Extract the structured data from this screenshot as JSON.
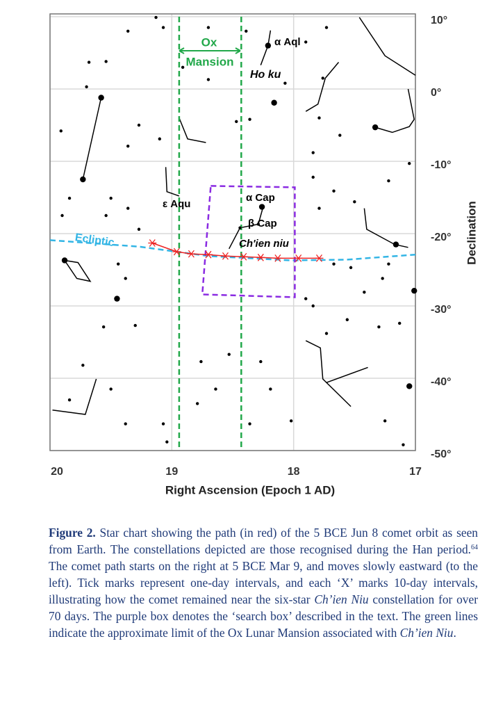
{
  "chart_data": {
    "type": "scatter",
    "x_label": "Right Ascension (Epoch 1 AD)",
    "y_label": "Declination",
    "xlim": [
      20,
      17
    ],
    "ylim": [
      -50,
      10
    ],
    "xticks": [
      20,
      19,
      18,
      17
    ],
    "yticks": [
      {
        "value": 10,
        "label": "10°"
      },
      {
        "value": 0,
        "label": "0°"
      },
      {
        "value": -10,
        "label": "-10°"
      },
      {
        "value": -20,
        "label": "-20°"
      },
      {
        "value": -30,
        "label": "-30°"
      },
      {
        "value": -40,
        "label": "-40°"
      },
      {
        "value": -50,
        "label": "-50°"
      }
    ],
    "grid": true,
    "series": [
      {
        "color": "#000000",
        "size": 2.2,
        "x": [
          19.13,
          19.07,
          19.36,
          19.54,
          19.68,
          19.7,
          19.91,
          19.27,
          19.36,
          19.1,
          19.5,
          19.36,
          19.84,
          19.9,
          19.54,
          19.27,
          19.44,
          19.38,
          19.56,
          19.3,
          19.73,
          19.84,
          19.5,
          19.38,
          19.07,
          19.04,
          18.79,
          18.76,
          18.64,
          18.53,
          18.27,
          18.19,
          18.36,
          18.02,
          17.9,
          17.84,
          17.73,
          17.56,
          17.3,
          17.13,
          17.25,
          17.1,
          17.27,
          17.22,
          17.67,
          17.53,
          17.42,
          17.79,
          17.67,
          17.5,
          17.84,
          17.22,
          17.05,
          17.84,
          17.62,
          17.79,
          18.07,
          18.7,
          18.47,
          18.36,
          18.91,
          17.76,
          17.73,
          17.9,
          18.39,
          18.7,
          18.44,
          18.29
        ],
        "y": [
          9.9,
          8.5,
          8.0,
          3.8,
          3.7,
          0.3,
          -5.8,
          -5.0,
          -7.9,
          -6.9,
          -15.1,
          -16.5,
          -15.1,
          -17.5,
          -17.5,
          -19.4,
          -24.2,
          -26.2,
          -32.9,
          -32.7,
          -38.2,
          -43.0,
          -41.5,
          -46.3,
          -46.3,
          -48.8,
          -43.5,
          -37.7,
          -41.5,
          -36.7,
          -37.7,
          -41.5,
          -46.3,
          -45.9,
          -29.0,
          -30.0,
          -33.8,
          -31.9,
          -32.9,
          -32.4,
          -45.9,
          -49.2,
          -26.2,
          -24.2,
          -24.2,
          -24.7,
          -28.1,
          -16.5,
          -14.1,
          -15.6,
          -12.2,
          -12.7,
          -10.3,
          -8.8,
          -6.4,
          -4.0,
          0.8,
          1.3,
          -4.5,
          -4.2,
          3.0,
          1.5,
          8.5,
          6.5,
          8.0,
          8.5,
          -19.2,
          -18.7
        ]
      },
      {
        "color": "#000000",
        "size": 4.2,
        "x": [
          19.58,
          19.73,
          19.45,
          17.05,
          17.01,
          18.16,
          18.21,
          18.26,
          19.88,
          17.16,
          17.33
        ],
        "y": [
          -1.2,
          -12.5,
          -29.0,
          -41.1,
          -27.9,
          -1.9,
          6.0,
          -16.3,
          -23.7,
          -21.5,
          -5.3
        ]
      }
    ],
    "lines": [
      {
        "color": "#000000",
        "dash": false,
        "x": [
          18.19,
          18.21,
          18.27,
          null,
          19.58,
          19.73,
          null,
          17.46,
          17.25,
          17.0,
          null,
          17.63,
          17.74,
          17.8,
          17.9,
          null,
          17.33,
          17.19,
          17.05,
          17.01,
          17.06,
          null,
          18.25,
          18.29,
          18.44,
          18.53,
          null,
          19.05,
          19.04,
          18.94,
          null,
          18.94,
          18.87,
          18.72,
          null,
          17.42,
          17.4,
          17.17,
          17.06,
          null,
          19.88,
          19.78,
          19.67,
          19.77,
          19.88,
          null,
          17.9,
          17.78,
          17.76,
          17.53,
          null,
          17.73,
          17.39,
          null,
          19.98,
          19.71,
          19.62
        ],
        "y": [
          8.1,
          6.0,
          3.3,
          null,
          -1.2,
          -12.5,
          null,
          9.9,
          4.6,
          1.9,
          null,
          3.7,
          1.5,
          -2.1,
          -3.1,
          null,
          -5.3,
          -6.0,
          -5.2,
          -4.2,
          0.0,
          null,
          -16.3,
          -18.7,
          -19.2,
          -22.1,
          null,
          -10.8,
          -14.2,
          -14.8,
          null,
          -4.0,
          -6.9,
          -7.4,
          null,
          -16.5,
          -19.4,
          -21.5,
          -21.9,
          null,
          -23.7,
          -26.2,
          -26.6,
          -24.0,
          -23.7,
          null,
          -34.8,
          -35.8,
          -40.1,
          -43.9,
          null,
          -40.6,
          -38.5,
          null,
          -44.4,
          -45.0,
          -40.1
        ]
      },
      {
        "color": "#33b5e5",
        "dash": true,
        "x": [
          20,
          19.27,
          18.7,
          18.02,
          17.56,
          17.0
        ],
        "y": [
          -20.9,
          -21.8,
          -23.1,
          -23.7,
          -23.6,
          -22.9
        ]
      },
      {
        "color": "#22a84a",
        "dash": true,
        "x": [
          18.94,
          18.94
        ],
        "y": [
          10,
          -50
        ]
      },
      {
        "color": "#22a84a",
        "dash": true,
        "x": [
          18.43,
          18.43
        ],
        "y": [
          10,
          -50
        ]
      },
      {
        "color": "#8a2be2",
        "dash": true,
        "x": [
          18.68,
          17.99,
          17.99,
          18.75,
          18.68
        ],
        "y": [
          -13.4,
          -13.6,
          -28.8,
          -28.4,
          -13.4
        ]
      },
      {
        "color": "#ee2222",
        "dash": false,
        "markers": true,
        "x": [
          19.16,
          18.96,
          18.84,
          18.7,
          18.56,
          18.41,
          18.27,
          18.13,
          17.96,
          17.79
        ],
        "y": [
          -21.3,
          -22.5,
          -22.8,
          -22.9,
          -23.1,
          -23.2,
          -23.3,
          -23.4,
          -23.4,
          -23.4
        ]
      }
    ],
    "annotations": [
      {
        "text": "Ox",
        "color": "#22a84a"
      },
      {
        "text": "Mansion",
        "color": "#22a84a"
      },
      {
        "text": "α Aql",
        "color": "#000000"
      },
      {
        "text": "Ho ku",
        "color": "#000000"
      },
      {
        "text": "ε Aqu",
        "color": "#000000"
      },
      {
        "text": "α Cap",
        "color": "#000000"
      },
      {
        "text": "β Cap",
        "color": "#000000"
      },
      {
        "text": "Ch'ien niu",
        "color": "#000000"
      },
      {
        "text": "Ecliptic",
        "color": "#33b5e5"
      }
    ]
  },
  "caption": {
    "parts": [
      "Figure 2.",
      " Star chart showing the path (in red) of the 5 BCE Jun 8 comet orbit as seen from Earth. The constellations depicted are those recognised during the Han period.",
      "64",
      " The comet path starts on the right at 5 BCE Mar 9, and moves slowly eastward (to the left). Tick marks represent one-day intervals, and each ‘X’ marks 10-day intervals, illustrating how the comet remained near the six-star ",
      "Ch’ien Niu",
      " constellation for over 70 days. The purple box denotes the ‘search box’ described in the text. The green lines indicate the approximate limit of the Ox Lunar Mansion associated with ",
      "Ch’ien Niu",
      "."
    ]
  }
}
